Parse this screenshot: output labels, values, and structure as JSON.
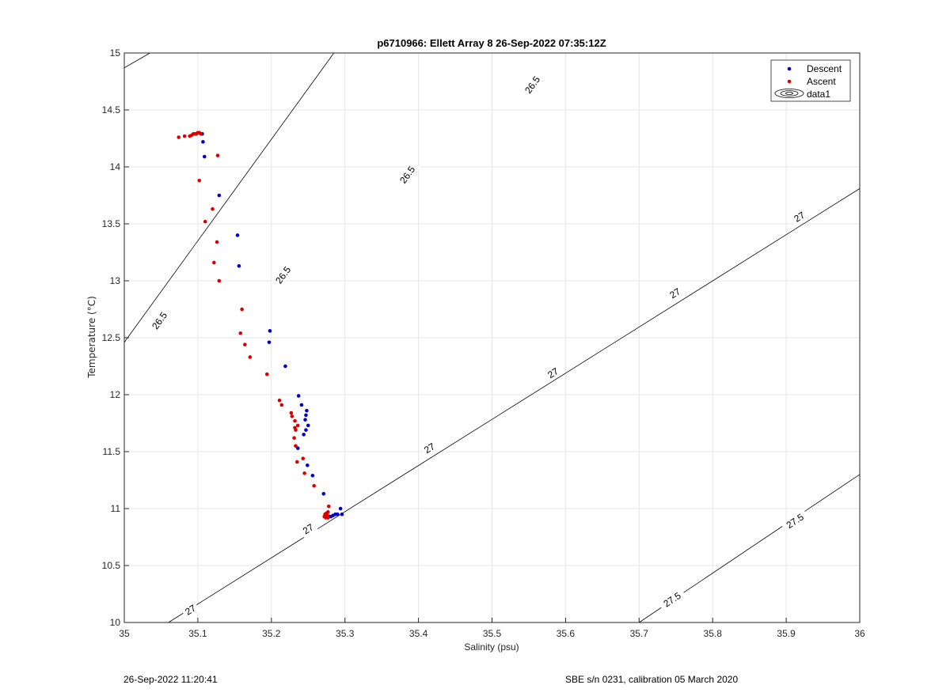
{
  "chart_data": {
    "type": "scatter",
    "title": "p6710966: Ellett Array 8 26-Sep-2022 07:35:12Z",
    "xlabel": "Salinity (psu)",
    "ylabel": "Temperature (°C)",
    "xlim": [
      35,
      36
    ],
    "ylim": [
      10,
      15
    ],
    "xticks": [
      "35",
      "35.1",
      "35.2",
      "35.3",
      "35.4",
      "35.5",
      "35.6",
      "35.7",
      "35.8",
      "35.9",
      "36"
    ],
    "yticks": [
      "10",
      "10.5",
      "11",
      "11.5",
      "12",
      "12.5",
      "13",
      "13.5",
      "14",
      "14.5",
      "15"
    ],
    "grid": true,
    "legend_position": "top-right",
    "legend": [
      "Descent",
      "Ascent",
      "data1"
    ],
    "colors": {
      "descent": "#0000cc",
      "ascent": "#dd0000",
      "contour": "#000000",
      "grid": "#e6e6e6"
    },
    "series": [
      {
        "name": "Descent",
        "color": "#0000cc",
        "points": [
          [
            35.106,
            14.29
          ],
          [
            35.107,
            14.22
          ],
          [
            35.109,
            14.09
          ],
          [
            35.129,
            13.75
          ],
          [
            35.154,
            13.4
          ],
          [
            35.156,
            13.13
          ],
          [
            35.198,
            12.56
          ],
          [
            35.197,
            12.46
          ],
          [
            35.219,
            12.25
          ],
          [
            35.237,
            11.99
          ],
          [
            35.241,
            11.91
          ],
          [
            35.248,
            11.86
          ],
          [
            35.247,
            11.82
          ],
          [
            35.246,
            11.78
          ],
          [
            35.25,
            11.73
          ],
          [
            35.247,
            11.69
          ],
          [
            35.244,
            11.65
          ],
          [
            35.236,
            11.53
          ],
          [
            35.249,
            11.38
          ],
          [
            35.256,
            11.29
          ],
          [
            35.271,
            11.13
          ],
          [
            35.294,
            11.0
          ],
          [
            35.296,
            10.95
          ],
          [
            35.29,
            10.95
          ],
          [
            35.287,
            10.95
          ],
          [
            35.284,
            10.94
          ],
          [
            35.281,
            10.93
          ],
          [
            35.279,
            10.93
          ]
        ]
      },
      {
        "name": "Ascent",
        "color": "#dd0000",
        "points": [
          [
            35.074,
            14.26
          ],
          [
            35.082,
            14.27
          ],
          [
            35.089,
            14.27
          ],
          [
            35.092,
            14.28
          ],
          [
            35.094,
            14.29
          ],
          [
            35.096,
            14.29
          ],
          [
            35.098,
            14.29
          ],
          [
            35.1,
            14.3
          ],
          [
            35.102,
            14.3
          ],
          [
            35.104,
            14.29
          ],
          [
            35.127,
            14.1
          ],
          [
            35.102,
            13.88
          ],
          [
            35.12,
            13.63
          ],
          [
            35.11,
            13.52
          ],
          [
            35.126,
            13.34
          ],
          [
            35.122,
            13.16
          ],
          [
            35.129,
            13.0
          ],
          [
            35.16,
            12.75
          ],
          [
            35.158,
            12.54
          ],
          [
            35.164,
            12.44
          ],
          [
            35.171,
            12.33
          ],
          [
            35.194,
            12.18
          ],
          [
            35.211,
            11.95
          ],
          [
            35.214,
            11.91
          ],
          [
            35.227,
            11.84
          ],
          [
            35.232,
            11.77
          ],
          [
            35.228,
            11.81
          ],
          [
            35.236,
            11.73
          ],
          [
            35.232,
            11.71
          ],
          [
            35.233,
            11.69
          ],
          [
            35.231,
            11.62
          ],
          [
            35.233,
            11.55
          ],
          [
            35.235,
            11.41
          ],
          [
            35.243,
            11.44
          ],
          [
            35.245,
            11.31
          ],
          [
            35.258,
            11.2
          ],
          [
            35.278,
            11.02
          ],
          [
            35.277,
            10.97
          ],
          [
            35.275,
            10.96
          ],
          [
            35.273,
            10.95
          ],
          [
            35.276,
            10.94
          ],
          [
            35.272,
            10.93
          ],
          [
            35.274,
            10.92
          ],
          [
            35.277,
            10.92
          ]
        ]
      }
    ],
    "contours": [
      {
        "label": "26.5",
        "x0": 35.0,
        "y0": 12.46,
        "x1": 35.285,
        "y1": 15.0
      },
      {
        "label": "26.5",
        "x0": 35.0,
        "y0": 14.87,
        "x1": 35.035,
        "y1": 15.0
      },
      {
        "label": "27",
        "x0": 35.06,
        "y0": 10.0,
        "x1": 36.0,
        "y1": 13.81
      },
      {
        "label": "27.5",
        "x0": 35.7,
        "y0": 10.0,
        "x1": 36.0,
        "y1": 11.3
      }
    ],
    "contour_labels": [
      {
        "text": "26.5",
        "x": 35.048,
        "y": 12.65
      },
      {
        "text": "26.5",
        "x": 35.216,
        "y": 13.05
      },
      {
        "text": "26.5",
        "x": 35.385,
        "y": 13.93
      },
      {
        "text": "26.5",
        "x": 35.555,
        "y": 14.72
      },
      {
        "text": "27",
        "x": 35.09,
        "y": 10.11
      },
      {
        "text": "27",
        "x": 35.25,
        "y": 10.82
      },
      {
        "text": "27",
        "x": 35.415,
        "y": 11.53
      },
      {
        "text": "27",
        "x": 35.583,
        "y": 12.19
      },
      {
        "text": "27",
        "x": 35.749,
        "y": 12.89
      },
      {
        "text": "27",
        "x": 35.918,
        "y": 13.56
      },
      {
        "text": "27.5",
        "x": 35.745,
        "y": 10.2
      },
      {
        "text": "27.5",
        "x": 35.912,
        "y": 10.89
      }
    ]
  },
  "footer": {
    "timestamp": "26-Sep-2022 11:20:41",
    "calibration": "SBE s/n 0231, calibration 05 March 2020"
  }
}
